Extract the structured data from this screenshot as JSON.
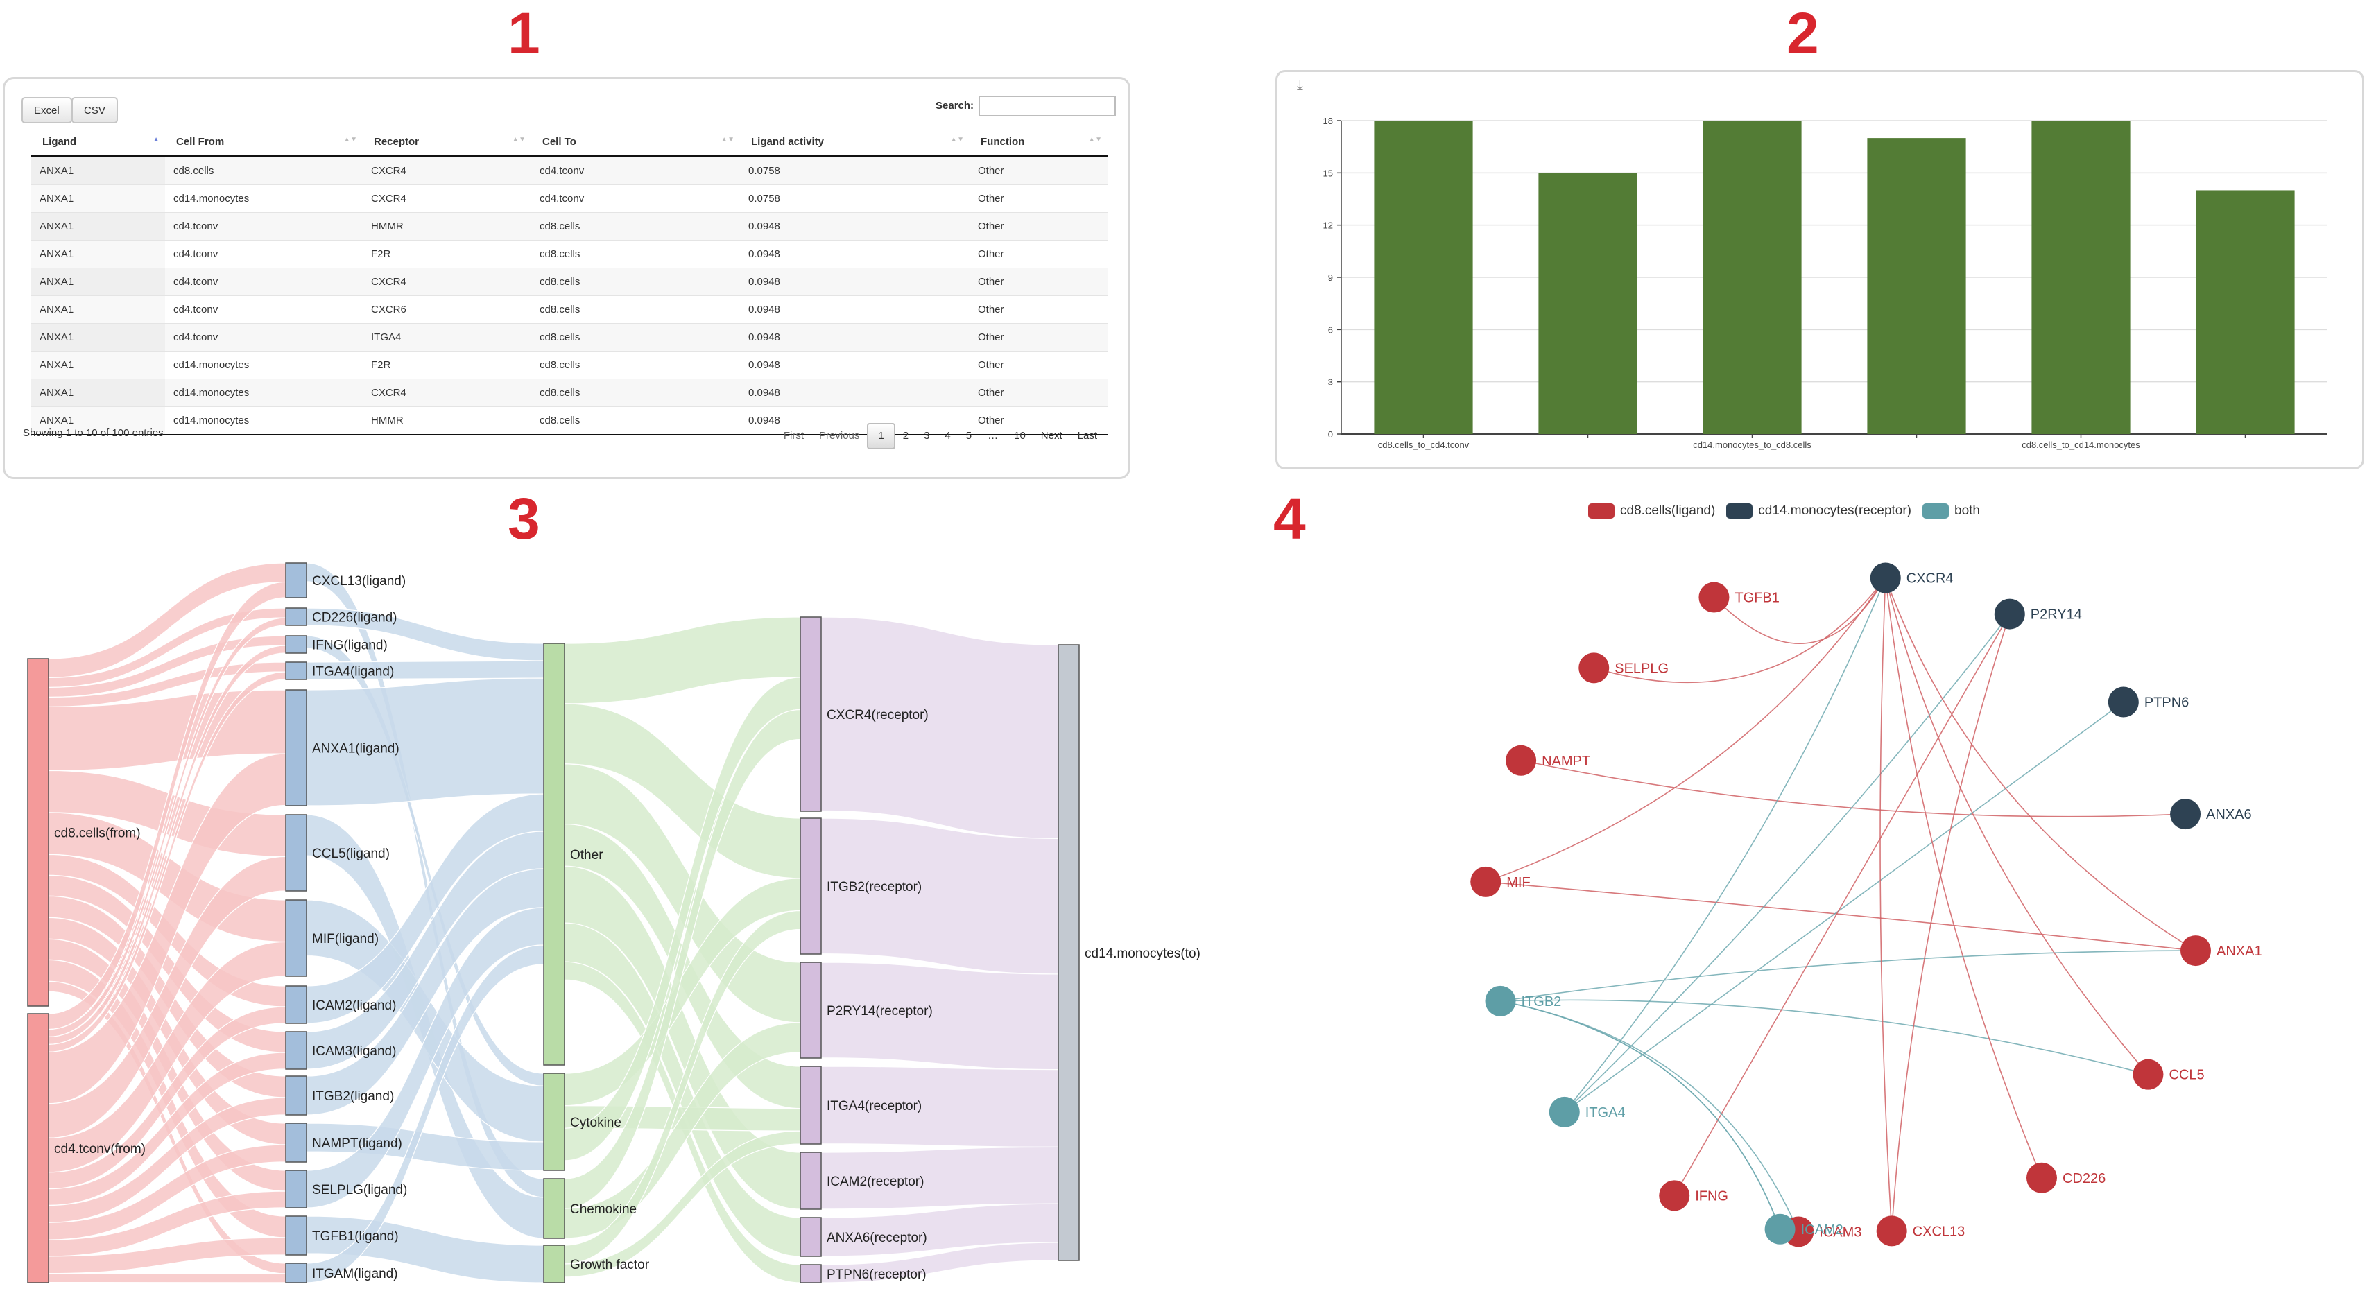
{
  "panel_labels": [
    "1",
    "2",
    "3",
    "4"
  ],
  "table": {
    "buttons": [
      "Excel",
      "CSV"
    ],
    "search_label": "Search:",
    "search_value": "",
    "columns": [
      "Ligand",
      "Cell From",
      "Receptor",
      "Cell To",
      "Ligand activity",
      "Function"
    ],
    "sorted_column": "Ligand",
    "rows": [
      [
        "ANXA1",
        "cd8.cells",
        "CXCR4",
        "cd4.tconv",
        "0.0758",
        "Other"
      ],
      [
        "ANXA1",
        "cd14.monocytes",
        "CXCR4",
        "cd4.tconv",
        "0.0758",
        "Other"
      ],
      [
        "ANXA1",
        "cd4.tconv",
        "HMMR",
        "cd8.cells",
        "0.0948",
        "Other"
      ],
      [
        "ANXA1",
        "cd4.tconv",
        "F2R",
        "cd8.cells",
        "0.0948",
        "Other"
      ],
      [
        "ANXA1",
        "cd4.tconv",
        "CXCR4",
        "cd8.cells",
        "0.0948",
        "Other"
      ],
      [
        "ANXA1",
        "cd4.tconv",
        "CXCR6",
        "cd8.cells",
        "0.0948",
        "Other"
      ],
      [
        "ANXA1",
        "cd4.tconv",
        "ITGA4",
        "cd8.cells",
        "0.0948",
        "Other"
      ],
      [
        "ANXA1",
        "cd14.monocytes",
        "F2R",
        "cd8.cells",
        "0.0948",
        "Other"
      ],
      [
        "ANXA1",
        "cd14.monocytes",
        "CXCR4",
        "cd8.cells",
        "0.0948",
        "Other"
      ],
      [
        "ANXA1",
        "cd14.monocytes",
        "HMMR",
        "cd8.cells",
        "0.0948",
        "Other"
      ]
    ],
    "info": "Showing 1 to 10 of 100 entries",
    "pager": [
      "First",
      "Previous",
      "1",
      "2",
      "3",
      "4",
      "5",
      "…",
      "10",
      "Next",
      "Last"
    ],
    "current_page": "1"
  },
  "chart_data": {
    "type": "bar",
    "categories": [
      "cd8.cells_to_cd4.tconv",
      "",
      "cd14.monocytes_to_cd8.cells",
      "",
      "cd8.cells_to_cd14.monocytes",
      ""
    ],
    "values": [
      18,
      15,
      18,
      17,
      18,
      14
    ],
    "yticks": [
      0,
      3,
      6,
      9,
      12,
      15,
      18
    ],
    "ylim": [
      0,
      18
    ],
    "grid": true,
    "bar_color": "#537c35",
    "icons": {
      "download": "download-icon"
    }
  },
  "sankey": {
    "columns": [
      [
        {
          "label": "cd8.cells(from)",
          "color": "#f49a9a"
        },
        {
          "label": "cd4.tconv(from)",
          "color": "#f49a9a"
        }
      ],
      [
        {
          "label": "CXCL13(ligand)",
          "color": "#a3bedb"
        },
        {
          "label": "CD226(ligand)",
          "color": "#a3bedb"
        },
        {
          "label": "IFNG(ligand)",
          "color": "#a3bedb"
        },
        {
          "label": "ITGA4(ligand)",
          "color": "#a3bedb"
        },
        {
          "label": "ANXA1(ligand)",
          "color": "#a3bedb"
        },
        {
          "label": "CCL5(ligand)",
          "color": "#a3bedb"
        },
        {
          "label": "MIF(ligand)",
          "color": "#a3bedb"
        },
        {
          "label": "ICAM2(ligand)",
          "color": "#a3bedb"
        },
        {
          "label": "ICAM3(ligand)",
          "color": "#a3bedb"
        },
        {
          "label": "ITGB2(ligand)",
          "color": "#a3bedb"
        },
        {
          "label": "NAMPT(ligand)",
          "color": "#a3bedb"
        },
        {
          "label": "SELPLG(ligand)",
          "color": "#a3bedb"
        },
        {
          "label": "TGFB1(ligand)",
          "color": "#a3bedb"
        },
        {
          "label": "ITGAM(ligand)",
          "color": "#a3bedb"
        }
      ],
      [
        {
          "label": "Other",
          "color": "#b9dca7"
        },
        {
          "label": "Cytokine",
          "color": "#b9dca7"
        },
        {
          "label": "Chemokine",
          "color": "#b9dca7"
        },
        {
          "label": "Growth factor",
          "color": "#b9dca7"
        }
      ],
      [
        {
          "label": "CXCR4(receptor)",
          "color": "#d4bedd"
        },
        {
          "label": "ITGB2(receptor)",
          "color": "#d4bedd"
        },
        {
          "label": "P2RY14(receptor)",
          "color": "#d4bedd"
        },
        {
          "label": "ITGA4(receptor)",
          "color": "#d4bedd"
        },
        {
          "label": "ICAM2(receptor)",
          "color": "#d4bedd"
        },
        {
          "label": "ANXA6(receptor)",
          "color": "#d4bedd"
        },
        {
          "label": "PTPN6(receptor)",
          "color": "#d4bedd"
        }
      ],
      [
        {
          "label": "cd14.monocytes(to)",
          "color": "#c3c9d1"
        }
      ]
    ],
    "link_colors": [
      "#f7c5c5",
      "#c8d9ea",
      "#d6ebcc",
      "#e6dbec"
    ]
  },
  "network": {
    "legend": [
      {
        "label": "cd8.cells(ligand)",
        "color": "#c0353a"
      },
      {
        "label": "cd14.monocytes(receptor)",
        "color": "#2e4253"
      },
      {
        "label": "both",
        "color": "#5e9ea6"
      }
    ],
    "nodes": [
      {
        "name": "TGFB1",
        "group": "ligand"
      },
      {
        "name": "CXCR4",
        "group": "receptor"
      },
      {
        "name": "SELPLG",
        "group": "ligand"
      },
      {
        "name": "P2RY14",
        "group": "receptor"
      },
      {
        "name": "NAMPT",
        "group": "ligand"
      },
      {
        "name": "PTPN6",
        "group": "receptor"
      },
      {
        "name": "MIF",
        "group": "ligand"
      },
      {
        "name": "ANXA6",
        "group": "receptor"
      },
      {
        "name": "ITGB2",
        "group": "both"
      },
      {
        "name": "ANXA1",
        "group": "ligand"
      },
      {
        "name": "ITGA4",
        "group": "both"
      },
      {
        "name": "CCL5",
        "group": "ligand"
      },
      {
        "name": "IFNG",
        "group": "ligand"
      },
      {
        "name": "CD226",
        "group": "ligand"
      },
      {
        "name": "ICAM3",
        "group": "ligand"
      },
      {
        "name": "CXCL13",
        "group": "ligand"
      },
      {
        "name": "ICAM2",
        "group": "both"
      }
    ]
  }
}
